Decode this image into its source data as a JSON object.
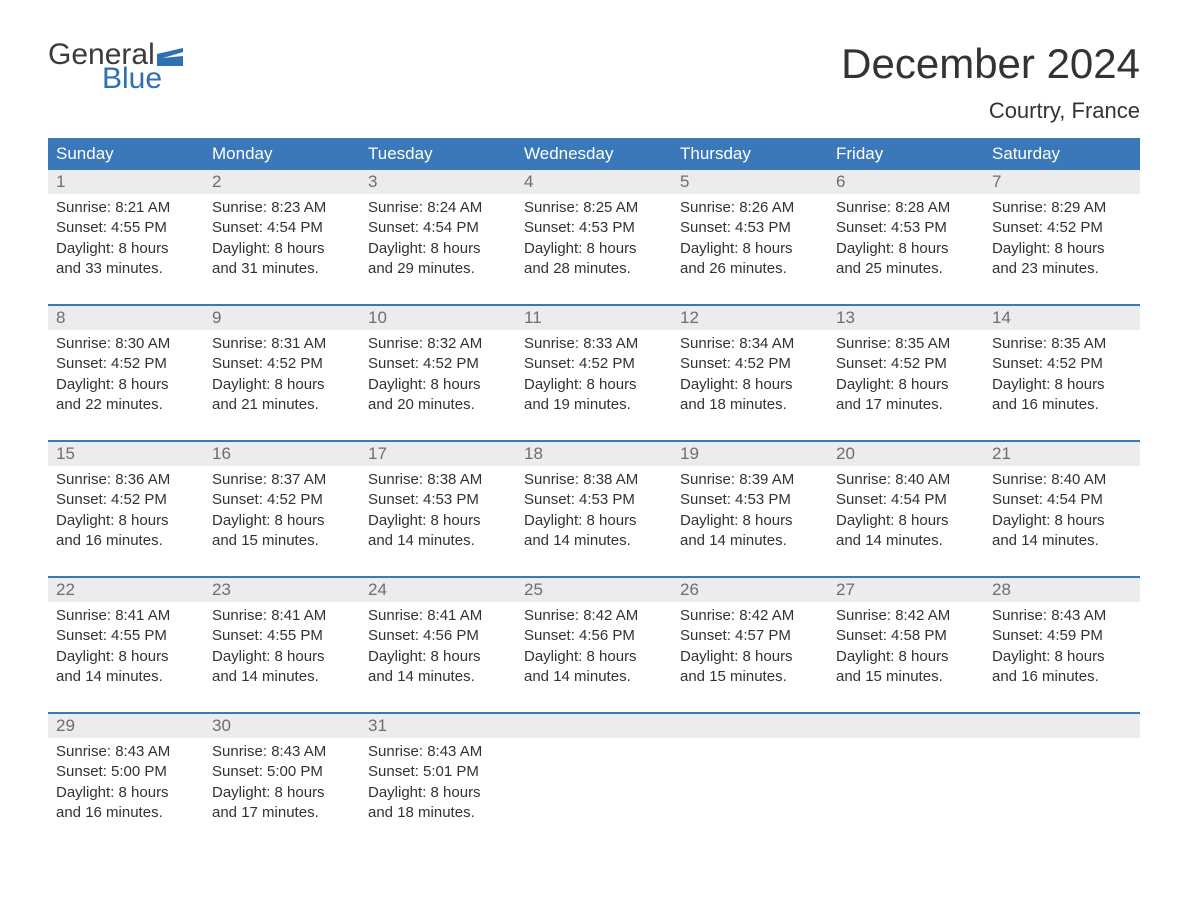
{
  "logo": {
    "word1": "General",
    "word2": "Blue",
    "color1": "#3b3b3b",
    "color2": "#2f6fb3"
  },
  "title": "December 2024",
  "location": "Courtry, France",
  "colors": {
    "header_bg": "#3a78b9",
    "header_text": "#ffffff",
    "daynum_bg": "#ececec",
    "daynum_text": "#6e6e6e",
    "body_text": "#333333",
    "week_border": "#3a78b9",
    "page_bg": "#ffffff"
  },
  "fonts": {
    "title_size": 42,
    "location_size": 22,
    "weekday_size": 17,
    "daynum_size": 17,
    "body_size": 15
  },
  "weekdays": [
    "Sunday",
    "Monday",
    "Tuesday",
    "Wednesday",
    "Thursday",
    "Friday",
    "Saturday"
  ],
  "weeks": [
    [
      {
        "n": "1",
        "sunrise": "8:21 AM",
        "sunset": "4:55 PM",
        "dl1": "8 hours",
        "dl2": "and 33 minutes."
      },
      {
        "n": "2",
        "sunrise": "8:23 AM",
        "sunset": "4:54 PM",
        "dl1": "8 hours",
        "dl2": "and 31 minutes."
      },
      {
        "n": "3",
        "sunrise": "8:24 AM",
        "sunset": "4:54 PM",
        "dl1": "8 hours",
        "dl2": "and 29 minutes."
      },
      {
        "n": "4",
        "sunrise": "8:25 AM",
        "sunset": "4:53 PM",
        "dl1": "8 hours",
        "dl2": "and 28 minutes."
      },
      {
        "n": "5",
        "sunrise": "8:26 AM",
        "sunset": "4:53 PM",
        "dl1": "8 hours",
        "dl2": "and 26 minutes."
      },
      {
        "n": "6",
        "sunrise": "8:28 AM",
        "sunset": "4:53 PM",
        "dl1": "8 hours",
        "dl2": "and 25 minutes."
      },
      {
        "n": "7",
        "sunrise": "8:29 AM",
        "sunset": "4:52 PM",
        "dl1": "8 hours",
        "dl2": "and 23 minutes."
      }
    ],
    [
      {
        "n": "8",
        "sunrise": "8:30 AM",
        "sunset": "4:52 PM",
        "dl1": "8 hours",
        "dl2": "and 22 minutes."
      },
      {
        "n": "9",
        "sunrise": "8:31 AM",
        "sunset": "4:52 PM",
        "dl1": "8 hours",
        "dl2": "and 21 minutes."
      },
      {
        "n": "10",
        "sunrise": "8:32 AM",
        "sunset": "4:52 PM",
        "dl1": "8 hours",
        "dl2": "and 20 minutes."
      },
      {
        "n": "11",
        "sunrise": "8:33 AM",
        "sunset": "4:52 PM",
        "dl1": "8 hours",
        "dl2": "and 19 minutes."
      },
      {
        "n": "12",
        "sunrise": "8:34 AM",
        "sunset": "4:52 PM",
        "dl1": "8 hours",
        "dl2": "and 18 minutes."
      },
      {
        "n": "13",
        "sunrise": "8:35 AM",
        "sunset": "4:52 PM",
        "dl1": "8 hours",
        "dl2": "and 17 minutes."
      },
      {
        "n": "14",
        "sunrise": "8:35 AM",
        "sunset": "4:52 PM",
        "dl1": "8 hours",
        "dl2": "and 16 minutes."
      }
    ],
    [
      {
        "n": "15",
        "sunrise": "8:36 AM",
        "sunset": "4:52 PM",
        "dl1": "8 hours",
        "dl2": "and 16 minutes."
      },
      {
        "n": "16",
        "sunrise": "8:37 AM",
        "sunset": "4:52 PM",
        "dl1": "8 hours",
        "dl2": "and 15 minutes."
      },
      {
        "n": "17",
        "sunrise": "8:38 AM",
        "sunset": "4:53 PM",
        "dl1": "8 hours",
        "dl2": "and 14 minutes."
      },
      {
        "n": "18",
        "sunrise": "8:38 AM",
        "sunset": "4:53 PM",
        "dl1": "8 hours",
        "dl2": "and 14 minutes."
      },
      {
        "n": "19",
        "sunrise": "8:39 AM",
        "sunset": "4:53 PM",
        "dl1": "8 hours",
        "dl2": "and 14 minutes."
      },
      {
        "n": "20",
        "sunrise": "8:40 AM",
        "sunset": "4:54 PM",
        "dl1": "8 hours",
        "dl2": "and 14 minutes."
      },
      {
        "n": "21",
        "sunrise": "8:40 AM",
        "sunset": "4:54 PM",
        "dl1": "8 hours",
        "dl2": "and 14 minutes."
      }
    ],
    [
      {
        "n": "22",
        "sunrise": "8:41 AM",
        "sunset": "4:55 PM",
        "dl1": "8 hours",
        "dl2": "and 14 minutes."
      },
      {
        "n": "23",
        "sunrise": "8:41 AM",
        "sunset": "4:55 PM",
        "dl1": "8 hours",
        "dl2": "and 14 minutes."
      },
      {
        "n": "24",
        "sunrise": "8:41 AM",
        "sunset": "4:56 PM",
        "dl1": "8 hours",
        "dl2": "and 14 minutes."
      },
      {
        "n": "25",
        "sunrise": "8:42 AM",
        "sunset": "4:56 PM",
        "dl1": "8 hours",
        "dl2": "and 14 minutes."
      },
      {
        "n": "26",
        "sunrise": "8:42 AM",
        "sunset": "4:57 PM",
        "dl1": "8 hours",
        "dl2": "and 15 minutes."
      },
      {
        "n": "27",
        "sunrise": "8:42 AM",
        "sunset": "4:58 PM",
        "dl1": "8 hours",
        "dl2": "and 15 minutes."
      },
      {
        "n": "28",
        "sunrise": "8:43 AM",
        "sunset": "4:59 PM",
        "dl1": "8 hours",
        "dl2": "and 16 minutes."
      }
    ],
    [
      {
        "n": "29",
        "sunrise": "8:43 AM",
        "sunset": "5:00 PM",
        "dl1": "8 hours",
        "dl2": "and 16 minutes."
      },
      {
        "n": "30",
        "sunrise": "8:43 AM",
        "sunset": "5:00 PM",
        "dl1": "8 hours",
        "dl2": "and 17 minutes."
      },
      {
        "n": "31",
        "sunrise": "8:43 AM",
        "sunset": "5:01 PM",
        "dl1": "8 hours",
        "dl2": "and 18 minutes."
      },
      null,
      null,
      null,
      null
    ]
  ],
  "labels": {
    "sunrise": "Sunrise: ",
    "sunset": "Sunset: ",
    "daylight": "Daylight: "
  }
}
